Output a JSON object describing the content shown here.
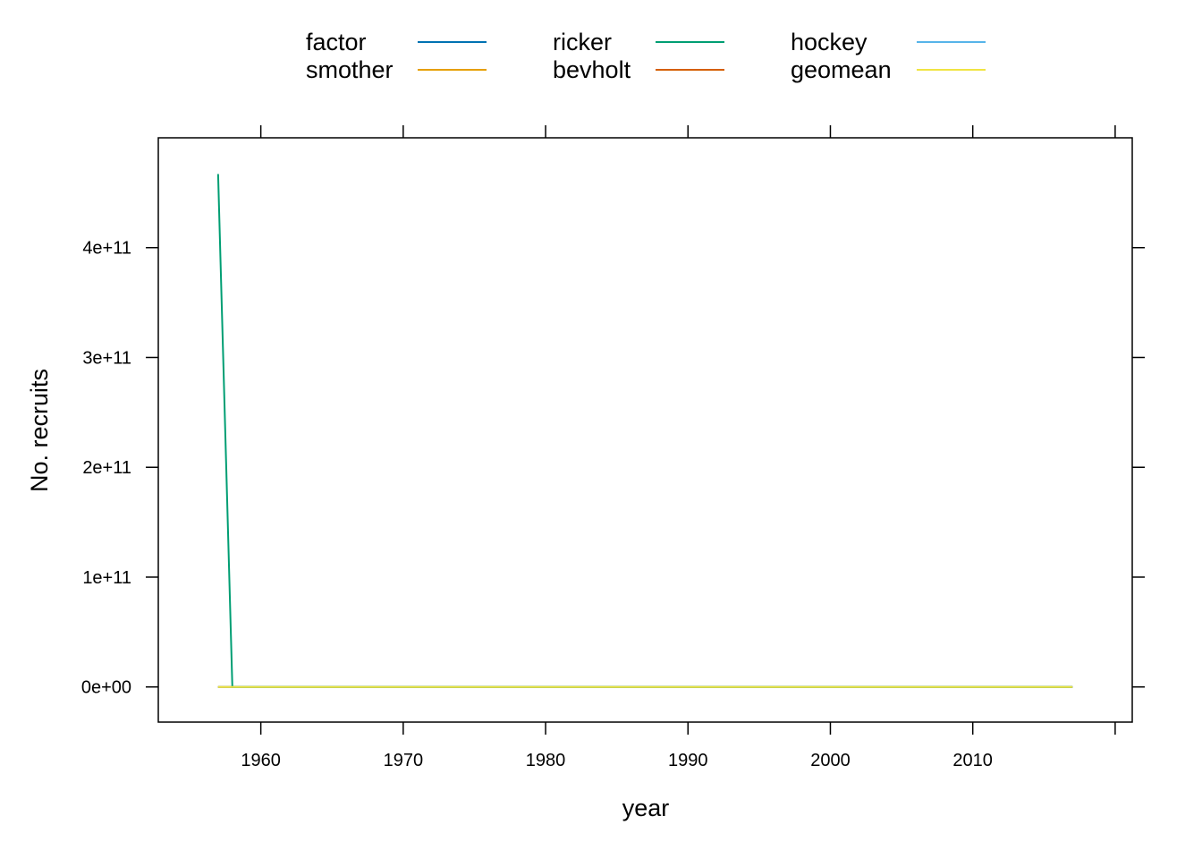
{
  "chart_data": {
    "type": "line",
    "xlabel": "year",
    "ylabel": "No. recruits",
    "xlim": [
      1952.8,
      2021.2
    ],
    "ylim": [
      -32000000000.0,
      500000000000.0
    ],
    "x_ticks": [
      1960,
      1970,
      1980,
      1990,
      2000,
      2010
    ],
    "x_tick_labels": [
      "1960",
      "1970",
      "1980",
      "1990",
      "2000",
      "2010"
    ],
    "y_ticks": [
      0,
      100000000000.0,
      200000000000.0,
      300000000000.0,
      400000000000.0
    ],
    "y_tick_labels": [
      "0e+00",
      "1e+11",
      "2e+11",
      "3e+11",
      "4e+11"
    ],
    "legend_position": "top",
    "legend_columns": 3,
    "series": [
      {
        "name": "factor",
        "color": "#0072B2",
        "x": [
          1957,
          2017
        ],
        "y": [
          0,
          0
        ]
      },
      {
        "name": "smother",
        "color": "#E69F00",
        "x": [
          1957,
          2017
        ],
        "y": [
          0,
          0
        ]
      },
      {
        "name": "ricker",
        "color": "#009E73",
        "x": [
          1957,
          1958,
          2017
        ],
        "y": [
          467000000000.0,
          0,
          0
        ]
      },
      {
        "name": "bevholt",
        "color": "#D55E00",
        "x": [
          1957,
          2017
        ],
        "y": [
          0,
          0
        ]
      },
      {
        "name": "hockey",
        "color": "#56B4E9",
        "x": [
          1957,
          2017
        ],
        "y": [
          0,
          0
        ]
      },
      {
        "name": "geomean",
        "color": "#F0E442",
        "x": [
          1957,
          2017
        ],
        "y": [
          0,
          0
        ]
      }
    ]
  }
}
